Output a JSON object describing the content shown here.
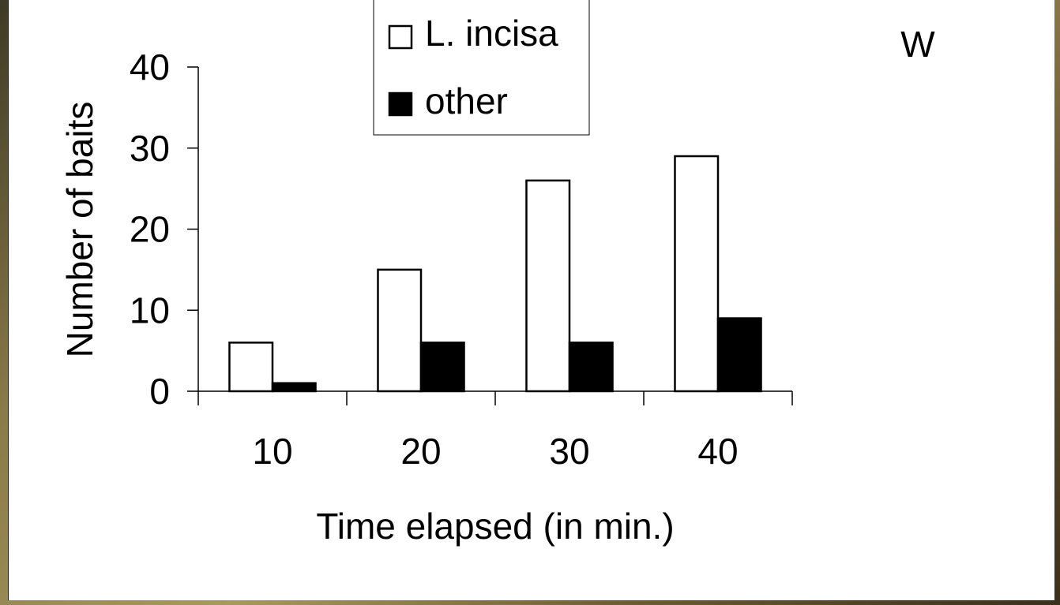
{
  "panel_letter": "W",
  "chart_data": {
    "type": "bar",
    "categories": [
      "10",
      "20",
      "30",
      "40"
    ],
    "series": [
      {
        "name": "L. incisa",
        "values": [
          6,
          15,
          26,
          29
        ],
        "color": "#ffffff"
      },
      {
        "name": "other",
        "values": [
          1,
          6,
          6,
          9
        ],
        "color": "#000000"
      }
    ],
    "xlabel": "Time elapsed (in min.)",
    "ylabel": "Number of baits",
    "ylim": [
      0,
      40
    ],
    "yticks": [
      0,
      10,
      20,
      30,
      40
    ],
    "legend_position": "top-center",
    "grid": false
  }
}
